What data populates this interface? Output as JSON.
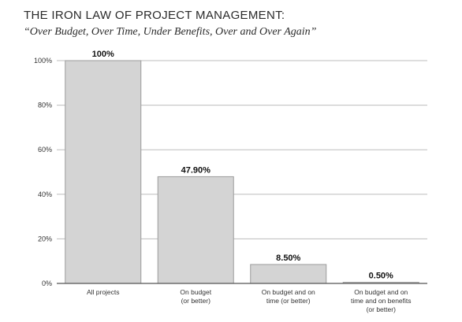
{
  "chart_data": {
    "type": "bar",
    "title": "THE IRON LAW OF PROJECT MANAGEMENT:",
    "subtitle": "“Over Budget, Over Time, Under Benefits, Over and Over Again”",
    "categories": [
      [
        "All projects"
      ],
      [
        "On budget",
        "(or better)"
      ],
      [
        "On budget and on",
        "time (or better)"
      ],
      [
        "On budget and on",
        "time and on benefits",
        "(or better)"
      ]
    ],
    "values": [
      100,
      47.9,
      8.5,
      0.5
    ],
    "value_labels": [
      "100%",
      "47.90%",
      "8.50%",
      "0.50%"
    ],
    "yticks": [
      "0%",
      "20%",
      "40%",
      "60%",
      "80%",
      "100%"
    ],
    "ylim": [
      0,
      100
    ],
    "grid": true,
    "colors": {
      "bar_fill": "#d4d4d4",
      "bar_stroke": "#9c9c9c",
      "grid": "#bdbdbd",
      "axis": "#555555"
    }
  }
}
